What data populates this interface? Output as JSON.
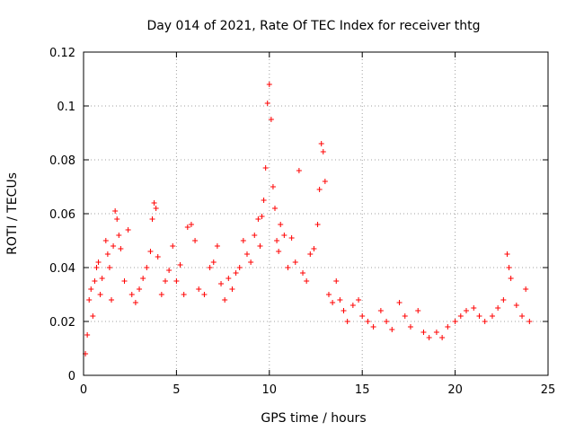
{
  "chart_data": {
    "type": "scatter",
    "title": "Day 014 of 2021, Rate Of TEC Index for receiver thtg",
    "xlabel": "GPS time / hours",
    "ylabel": "ROTI / TECUs",
    "xlim": [
      0,
      25
    ],
    "ylim": [
      0,
      0.12
    ],
    "x_ticks": [
      0,
      5,
      10,
      15,
      20,
      25
    ],
    "y_ticks": [
      0,
      0.02,
      0.04,
      0.06,
      0.08,
      0.1,
      0.12
    ],
    "x_tick_labels": [
      "0",
      "5",
      "10",
      "15",
      "20",
      "25"
    ],
    "y_tick_labels": [
      "0",
      "0.02",
      "0.04",
      "0.06",
      "0.08",
      "0.1",
      "0.12"
    ],
    "grid": true,
    "marker": "+",
    "color": "#ff0000",
    "series": [
      {
        "name": "",
        "points": [
          [
            0.1,
            0.008
          ],
          [
            0.2,
            0.015
          ],
          [
            0.3,
            0.028
          ],
          [
            0.4,
            0.032
          ],
          [
            0.5,
            0.022
          ],
          [
            0.6,
            0.035
          ],
          [
            0.7,
            0.04
          ],
          [
            0.8,
            0.042
          ],
          [
            0.9,
            0.03
          ],
          [
            1.0,
            0.036
          ],
          [
            1.2,
            0.05
          ],
          [
            1.3,
            0.045
          ],
          [
            1.4,
            0.04
          ],
          [
            1.5,
            0.028
          ],
          [
            1.6,
            0.048
          ],
          [
            1.7,
            0.061
          ],
          [
            1.8,
            0.058
          ],
          [
            1.9,
            0.052
          ],
          [
            2.0,
            0.047
          ],
          [
            2.2,
            0.035
          ],
          [
            2.4,
            0.054
          ],
          [
            2.6,
            0.03
          ],
          [
            2.8,
            0.027
          ],
          [
            3.0,
            0.032
          ],
          [
            3.2,
            0.036
          ],
          [
            3.4,
            0.04
          ],
          [
            3.6,
            0.046
          ],
          [
            3.7,
            0.058
          ],
          [
            3.8,
            0.064
          ],
          [
            3.9,
            0.062
          ],
          [
            4.0,
            0.044
          ],
          [
            4.2,
            0.03
          ],
          [
            4.4,
            0.035
          ],
          [
            4.6,
            0.039
          ],
          [
            4.8,
            0.048
          ],
          [
            5.0,
            0.035
          ],
          [
            5.2,
            0.041
          ],
          [
            5.4,
            0.03
          ],
          [
            5.6,
            0.055
          ],
          [
            5.8,
            0.056
          ],
          [
            6.0,
            0.05
          ],
          [
            6.2,
            0.032
          ],
          [
            6.5,
            0.03
          ],
          [
            6.8,
            0.04
          ],
          [
            7.0,
            0.042
          ],
          [
            7.2,
            0.048
          ],
          [
            7.4,
            0.034
          ],
          [
            7.6,
            0.028
          ],
          [
            7.8,
            0.036
          ],
          [
            8.0,
            0.032
          ],
          [
            8.2,
            0.038
          ],
          [
            8.4,
            0.04
          ],
          [
            8.6,
            0.05
          ],
          [
            8.8,
            0.045
          ],
          [
            9.0,
            0.042
          ],
          [
            9.2,
            0.052
          ],
          [
            9.4,
            0.058
          ],
          [
            9.5,
            0.048
          ],
          [
            9.6,
            0.059
          ],
          [
            9.7,
            0.065
          ],
          [
            9.8,
            0.077
          ],
          [
            9.9,
            0.101
          ],
          [
            10.0,
            0.108
          ],
          [
            10.1,
            0.095
          ],
          [
            10.2,
            0.07
          ],
          [
            10.3,
            0.062
          ],
          [
            10.4,
            0.05
          ],
          [
            10.5,
            0.046
          ],
          [
            10.6,
            0.056
          ],
          [
            10.8,
            0.052
          ],
          [
            11.0,
            0.04
          ],
          [
            11.2,
            0.051
          ],
          [
            11.4,
            0.042
          ],
          [
            11.6,
            0.076
          ],
          [
            11.8,
            0.038
          ],
          [
            12.0,
            0.035
          ],
          [
            12.2,
            0.045
          ],
          [
            12.4,
            0.047
          ],
          [
            12.6,
            0.056
          ],
          [
            12.7,
            0.069
          ],
          [
            12.8,
            0.086
          ],
          [
            12.9,
            0.083
          ],
          [
            13.0,
            0.072
          ],
          [
            13.2,
            0.03
          ],
          [
            13.4,
            0.027
          ],
          [
            13.6,
            0.035
          ],
          [
            13.8,
            0.028
          ],
          [
            14.0,
            0.024
          ],
          [
            14.2,
            0.02
          ],
          [
            14.5,
            0.026
          ],
          [
            14.8,
            0.028
          ],
          [
            15.0,
            0.022
          ],
          [
            15.3,
            0.02
          ],
          [
            15.6,
            0.018
          ],
          [
            16.0,
            0.024
          ],
          [
            16.3,
            0.02
          ],
          [
            16.6,
            0.017
          ],
          [
            17.0,
            0.027
          ],
          [
            17.3,
            0.022
          ],
          [
            17.6,
            0.018
          ],
          [
            18.0,
            0.024
          ],
          [
            18.3,
            0.016
          ],
          [
            18.6,
            0.014
          ],
          [
            19.0,
            0.016
          ],
          [
            19.3,
            0.014
          ],
          [
            19.6,
            0.018
          ],
          [
            20.0,
            0.02
          ],
          [
            20.3,
            0.022
          ],
          [
            20.6,
            0.024
          ],
          [
            21.0,
            0.025
          ],
          [
            21.3,
            0.022
          ],
          [
            21.6,
            0.02
          ],
          [
            22.0,
            0.022
          ],
          [
            22.3,
            0.025
          ],
          [
            22.6,
            0.028
          ],
          [
            22.8,
            0.045
          ],
          [
            22.9,
            0.04
          ],
          [
            23.0,
            0.036
          ],
          [
            23.3,
            0.026
          ],
          [
            23.6,
            0.022
          ],
          [
            23.8,
            0.032
          ],
          [
            24.0,
            0.02
          ]
        ]
      }
    ]
  }
}
